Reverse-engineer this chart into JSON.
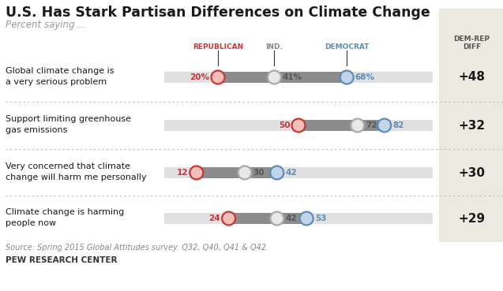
{
  "title": "U.S. Has Stark Partisan Differences on Climate Change",
  "subtitle": "Percent saying ...",
  "rows": [
    {
      "label": "Global climate change is\na very serious problem",
      "rep": 20,
      "ind": 41,
      "dem": 68,
      "diff": "+48",
      "rep_pct_label": "20%",
      "ind_pct_label": "41%",
      "dem_pct_label": "68%"
    },
    {
      "label": "Support limiting greenhouse\ngas emissions",
      "rep": 50,
      "ind": 72,
      "dem": 82,
      "diff": "+32",
      "rep_pct_label": "50",
      "ind_pct_label": "72",
      "dem_pct_label": "82"
    },
    {
      "label": "Very concerned that climate\nchange will harm me personally",
      "rep": 12,
      "ind": 30,
      "dem": 42,
      "diff": "+30",
      "rep_pct_label": "12",
      "ind_pct_label": "30",
      "dem_pct_label": "42"
    },
    {
      "label": "Climate change is harming\npeople now",
      "rep": 24,
      "ind": 42,
      "dem": 53,
      "diff": "+29",
      "rep_pct_label": "24",
      "ind_pct_label": "42",
      "dem_pct_label": "53"
    }
  ],
  "bar_bg_color": "#e0e0e0",
  "bar_fill_color": "#8c8c8c",
  "rep_color": "#cc3333",
  "ind_color": "#888888",
  "dem_color": "#5b8db8",
  "rep_circle_fill": "#f2c0b8",
  "ind_circle_fill": "#e8e8e8",
  "dem_circle_fill": "#c2d4e8",
  "diff_bg_color": "#eceae0",
  "source_text": "Source: Spring 2015 Global Attitudes survey. Q32, Q40, Q41 & Q42.",
  "footer_text": "PEW RESEARCH CENTER",
  "col_header_rep": "REPUBLICAN",
  "col_header_ind": "IND.",
  "col_header_dem": "DEMOCRAT",
  "col_header_diff": "DEM-REP\nDIFF",
  "background_color": "#ffffff"
}
